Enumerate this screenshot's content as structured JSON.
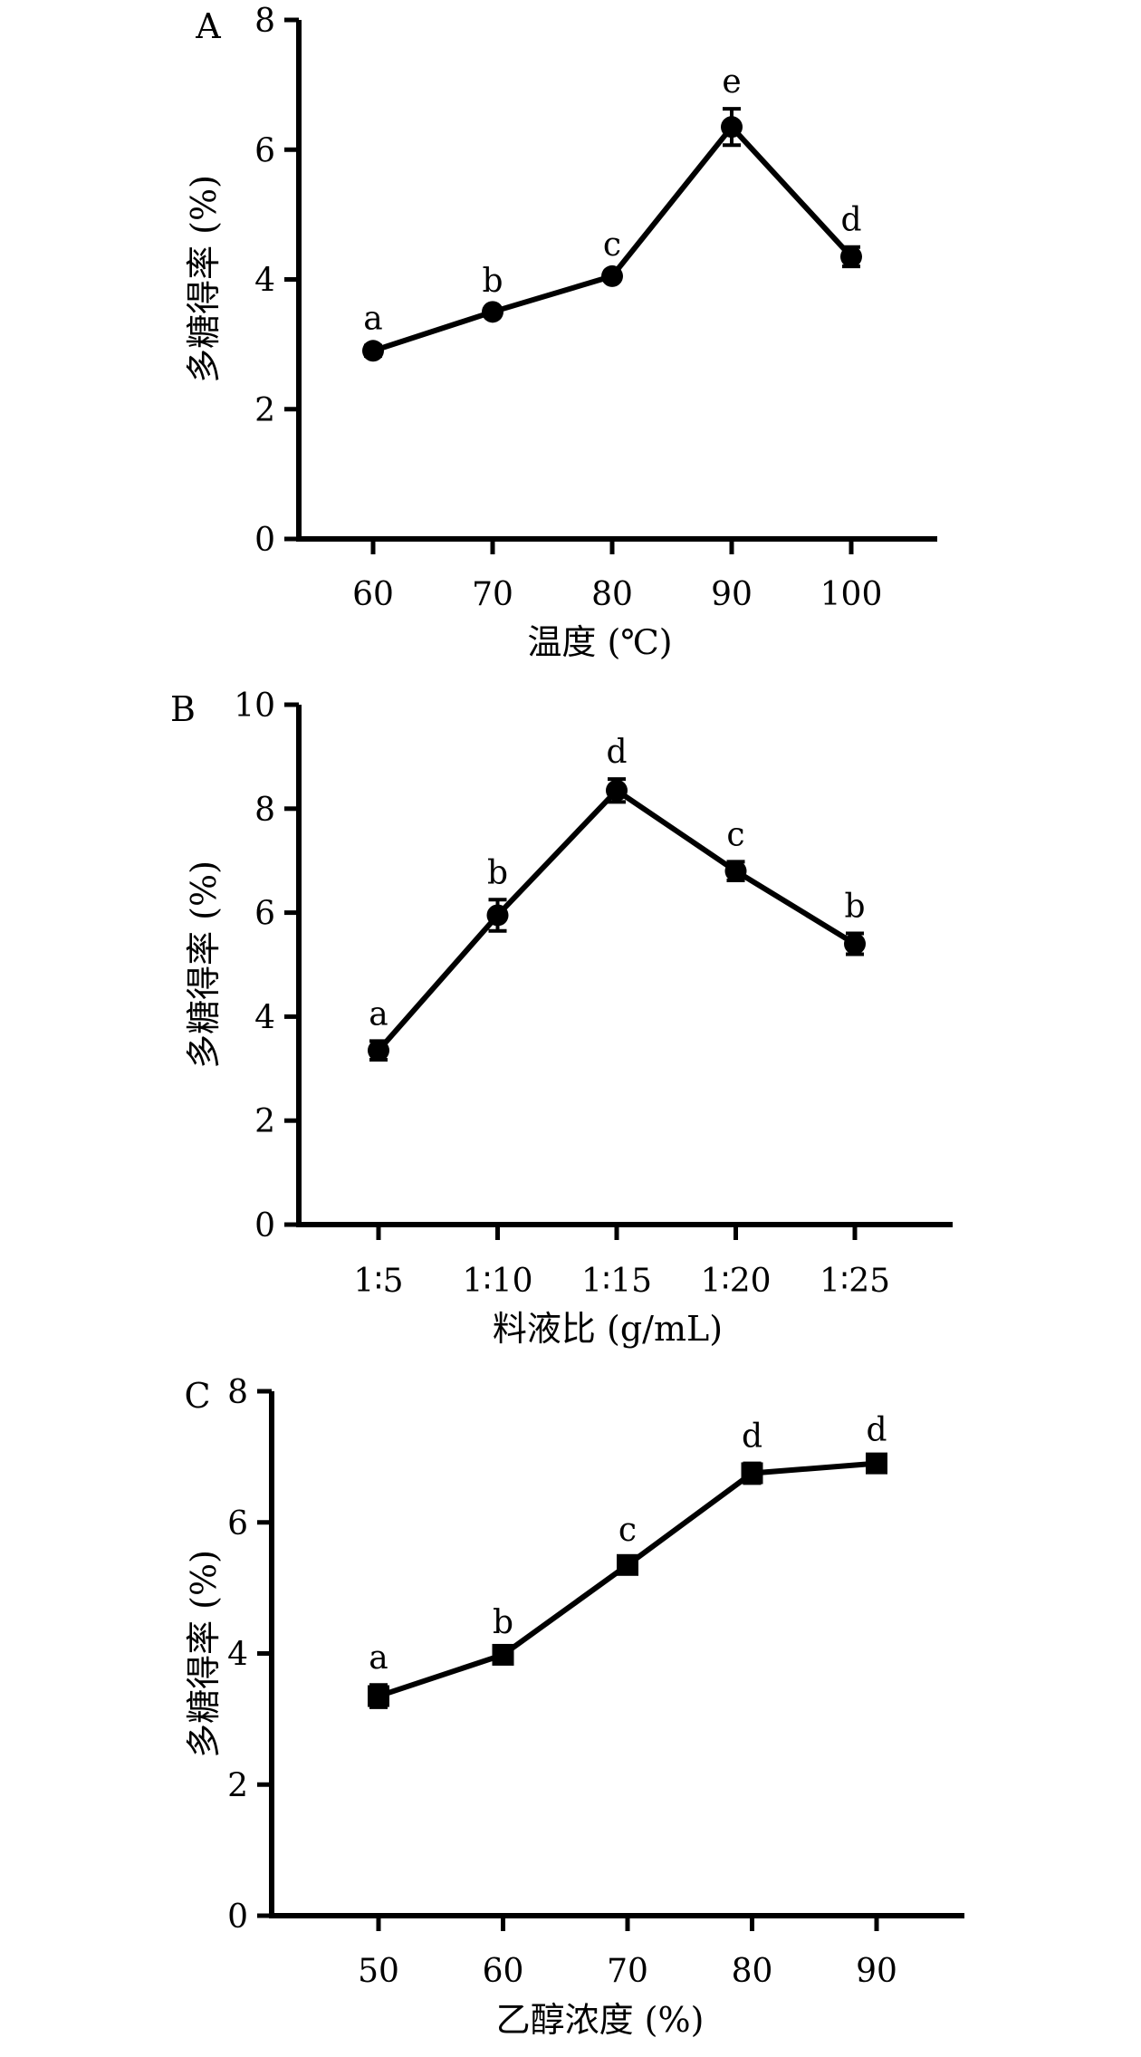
{
  "chart_data": [
    {
      "type": "line",
      "panel_label": "A",
      "title": "",
      "xlabel": "温度 (℃)",
      "ylabel": "多糖得率 (%)",
      "categories": [
        "60",
        "70",
        "80",
        "90",
        "100"
      ],
      "ylim": [
        0,
        8
      ],
      "yticks": [
        "0",
        "2",
        "4",
        "6",
        "8"
      ],
      "grid": false,
      "series": [
        {
          "values": [
            2.9,
            3.5,
            4.05,
            6.35,
            4.35
          ],
          "errors": [
            0.08,
            0.06,
            0.07,
            0.28,
            0.15
          ],
          "marker": "circle",
          "sig_labels": [
            "a",
            "b",
            "c",
            "e",
            "d"
          ]
        }
      ]
    },
    {
      "type": "line",
      "panel_label": "B",
      "title": "",
      "xlabel": "料液比 (g/mL)",
      "ylabel": "多糖得率 (%)",
      "categories": [
        "1∶5",
        "1∶10",
        "1∶15",
        "1∶20",
        "1∶25"
      ],
      "ylim": [
        0,
        10
      ],
      "yticks": [
        "0",
        "2",
        "4",
        "6",
        "8",
        "10"
      ],
      "grid": false,
      "series": [
        {
          "values": [
            3.35,
            5.95,
            8.35,
            6.8,
            5.4
          ],
          "errors": [
            0.18,
            0.3,
            0.22,
            0.18,
            0.2
          ],
          "marker": "circle",
          "sig_labels": [
            "a",
            "b",
            "d",
            "c",
            "b"
          ]
        }
      ]
    },
    {
      "type": "line",
      "panel_label": "C",
      "title": "",
      "xlabel": "乙醇浓度 (%)",
      "ylabel": "多糖得率 (%)",
      "categories": [
        "50",
        "60",
        "70",
        "80",
        "90"
      ],
      "ylim": [
        0,
        8
      ],
      "yticks": [
        "0",
        "2",
        "4",
        "6",
        "8"
      ],
      "grid": false,
      "series": [
        {
          "values": [
            3.35,
            3.98,
            5.35,
            6.75,
            6.9
          ],
          "errors": [
            0.17,
            0.08,
            0.12,
            0.15,
            0.1
          ],
          "marker": "square",
          "sig_labels": [
            "a",
            "b",
            "c",
            "d",
            "d"
          ]
        }
      ]
    }
  ]
}
